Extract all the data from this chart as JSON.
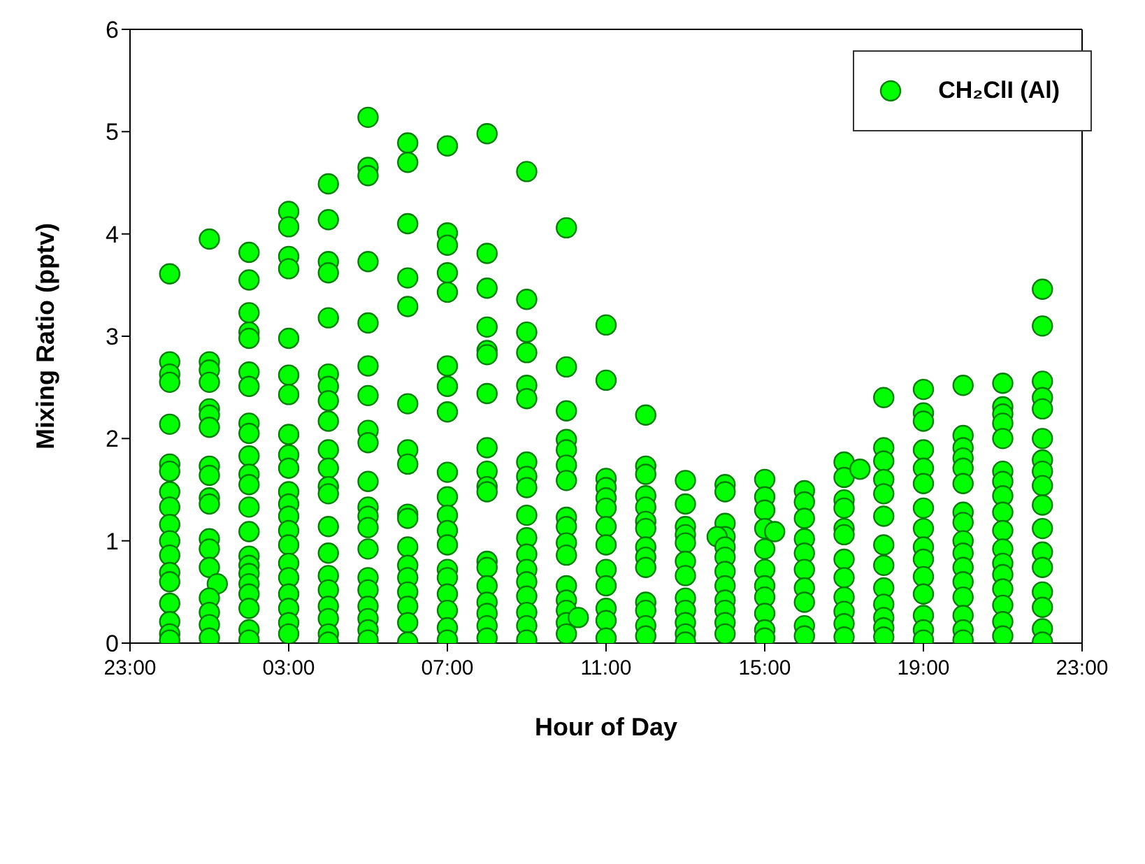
{
  "chart_data": {
    "type": "scatter",
    "xlabel": "Hour of Day",
    "ylabel": "Mixing Ratio (pptv)",
    "xlim": [
      "2000-01-01T23:00",
      "2000-01-02T23:00"
    ],
    "xticks": [
      {
        "value": "2000-01-01T23:00",
        "label": "23:00"
      },
      {
        "value": "2000-01-02T03:00",
        "label": "03:00"
      },
      {
        "value": "2000-01-02T07:00",
        "label": "07:00"
      },
      {
        "value": "2000-01-02T11:00",
        "label": "11:00"
      },
      {
        "value": "2000-01-02T15:00",
        "label": "15:00"
      },
      {
        "value": "2000-01-02T19:00",
        "label": "19:00"
      },
      {
        "value": "2000-01-02T23:00",
        "label": "23:00"
      }
    ],
    "ylim": [
      0,
      6
    ],
    "yticks": [
      0,
      1,
      2,
      3,
      4,
      5,
      6
    ],
    "grid": false,
    "legend": "top right",
    "marker": "circle",
    "series": [
      {
        "name": "CH₂ClI (Al)",
        "color": "#00ff00",
        "x": [
          "2000-01-02T00:00",
          "2000-01-02T00:00",
          "2000-01-02T00:00",
          "2000-01-02T00:00",
          "2000-01-02T00:00",
          "2000-01-02T00:00",
          "2000-01-02T00:00",
          "2000-01-02T00:00",
          "2000-01-02T00:00",
          "2000-01-02T00:00",
          "2000-01-02T00:00",
          "2000-01-02T00:00",
          "2000-01-02T00:00",
          "2000-01-02T00:00",
          "2000-01-02T00:00",
          "2000-01-02T00:00",
          "2000-01-02T00:00",
          "2000-01-02T00:00",
          "2000-01-02T01:00",
          "2000-01-02T01:00",
          "2000-01-02T01:00",
          "2000-01-02T01:00",
          "2000-01-02T01:00",
          "2000-01-02T01:00",
          "2000-01-02T01:00",
          "2000-01-02T01:00",
          "2000-01-02T01:00",
          "2000-01-02T01:00",
          "2000-01-02T01:00",
          "2000-01-02T01:00",
          "2000-01-02T01:00",
          "2000-01-02T01:00",
          "2000-01-02T01:12",
          "2000-01-02T01:00",
          "2000-01-02T01:00",
          "2000-01-02T01:00",
          "2000-01-02T01:00",
          "2000-01-02T02:00",
          "2000-01-02T02:00",
          "2000-01-02T02:00",
          "2000-01-02T02:00",
          "2000-01-02T02:00",
          "2000-01-02T02:00",
          "2000-01-02T02:00",
          "2000-01-02T02:00",
          "2000-01-02T02:00",
          "2000-01-02T02:00",
          "2000-01-02T02:00",
          "2000-01-02T02:00",
          "2000-01-02T02:00",
          "2000-01-02T02:00",
          "2000-01-02T02:00",
          "2000-01-02T02:00",
          "2000-01-02T02:00",
          "2000-01-02T02:00",
          "2000-01-02T02:00",
          "2000-01-02T02:00",
          "2000-01-02T02:00",
          "2000-01-02T02:00",
          "2000-01-02T03:00",
          "2000-01-02T03:00",
          "2000-01-02T03:00",
          "2000-01-02T03:00",
          "2000-01-02T03:00",
          "2000-01-02T03:00",
          "2000-01-02T03:00",
          "2000-01-02T03:00",
          "2000-01-02T03:00",
          "2000-01-02T03:00",
          "2000-01-02T03:00",
          "2000-01-02T03:00",
          "2000-01-02T03:00",
          "2000-01-02T03:00",
          "2000-01-02T03:00",
          "2000-01-02T03:00",
          "2000-01-02T03:00",
          "2000-01-02T03:00",
          "2000-01-02T03:00",
          "2000-01-02T03:00",
          "2000-01-02T03:00",
          "2000-01-02T04:00",
          "2000-01-02T04:00",
          "2000-01-02T04:00",
          "2000-01-02T04:00",
          "2000-01-02T04:00",
          "2000-01-02T04:00",
          "2000-01-02T04:00",
          "2000-01-02T04:00",
          "2000-01-02T04:00",
          "2000-01-02T04:00",
          "2000-01-02T04:00",
          "2000-01-02T04:00",
          "2000-01-02T04:00",
          "2000-01-02T04:00",
          "2000-01-02T04:00",
          "2000-01-02T04:00",
          "2000-01-02T04:00",
          "2000-01-02T04:00",
          "2000-01-02T04:00",
          "2000-01-02T04:00",
          "2000-01-02T04:00",
          "2000-01-02T05:00",
          "2000-01-02T05:00",
          "2000-01-02T05:00",
          "2000-01-02T05:00",
          "2000-01-02T05:00",
          "2000-01-02T05:00",
          "2000-01-02T05:00",
          "2000-01-02T05:00",
          "2000-01-02T05:00",
          "2000-01-02T05:00",
          "2000-01-02T05:00",
          "2000-01-02T05:00",
          "2000-01-02T05:00",
          "2000-01-02T05:00",
          "2000-01-02T05:00",
          "2000-01-02T05:00",
          "2000-01-02T05:00",
          "2000-01-02T05:00",
          "2000-01-02T05:00",
          "2000-01-02T05:00",
          "2000-01-02T06:00",
          "2000-01-02T06:00",
          "2000-01-02T06:00",
          "2000-01-02T06:00",
          "2000-01-02T06:00",
          "2000-01-02T06:00",
          "2000-01-02T06:00",
          "2000-01-02T06:00",
          "2000-01-02T06:00",
          "2000-01-02T06:00",
          "2000-01-02T06:00",
          "2000-01-02T06:00",
          "2000-01-02T06:00",
          "2000-01-02T06:00",
          "2000-01-02T06:00",
          "2000-01-02T06:00",
          "2000-01-02T06:00",
          "2000-01-02T07:00",
          "2000-01-02T07:00",
          "2000-01-02T07:00",
          "2000-01-02T07:00",
          "2000-01-02T07:00",
          "2000-01-02T07:00",
          "2000-01-02T07:00",
          "2000-01-02T07:00",
          "2000-01-02T07:00",
          "2000-01-02T07:00",
          "2000-01-02T07:00",
          "2000-01-02T07:00",
          "2000-01-02T07:00",
          "2000-01-02T07:00",
          "2000-01-02T07:00",
          "2000-01-02T07:00",
          "2000-01-02T07:00",
          "2000-01-02T07:00",
          "2000-01-02T07:00",
          "2000-01-02T08:00",
          "2000-01-02T08:00",
          "2000-01-02T08:00",
          "2000-01-02T08:00",
          "2000-01-02T08:00",
          "2000-01-02T08:00",
          "2000-01-02T08:00",
          "2000-01-02T08:00",
          "2000-01-02T08:00",
          "2000-01-02T08:00",
          "2000-01-02T08:00",
          "2000-01-02T08:00",
          "2000-01-02T08:00",
          "2000-01-02T08:00",
          "2000-01-02T08:00",
          "2000-01-02T08:00",
          "2000-01-02T08:00",
          "2000-01-02T08:00",
          "2000-01-02T09:00",
          "2000-01-02T09:00",
          "2000-01-02T09:00",
          "2000-01-02T09:00",
          "2000-01-02T09:00",
          "2000-01-02T09:00",
          "2000-01-02T09:00",
          "2000-01-02T09:00",
          "2000-01-02T09:00",
          "2000-01-02T09:00",
          "2000-01-02T09:00",
          "2000-01-02T09:00",
          "2000-01-02T09:00",
          "2000-01-02T09:00",
          "2000-01-02T09:00",
          "2000-01-02T09:00",
          "2000-01-02T09:00",
          "2000-01-02T09:00",
          "2000-01-02T10:00",
          "2000-01-02T10:00",
          "2000-01-02T10:00",
          "2000-01-02T10:00",
          "2000-01-02T10:00",
          "2000-01-02T10:00",
          "2000-01-02T10:00",
          "2000-01-02T10:00",
          "2000-01-02T10:00",
          "2000-01-02T10:00",
          "2000-01-02T10:00",
          "2000-01-02T10:00",
          "2000-01-02T10:00",
          "2000-01-02T10:00",
          "2000-01-02T10:00",
          "2000-01-02T10:00",
          "2000-01-02T10:18",
          "2000-01-02T11:00",
          "2000-01-02T11:00",
          "2000-01-02T11:00",
          "2000-01-02T11:00",
          "2000-01-02T11:00",
          "2000-01-02T11:00",
          "2000-01-02T11:00",
          "2000-01-02T11:00",
          "2000-01-02T11:00",
          "2000-01-02T11:00",
          "2000-01-02T11:00",
          "2000-01-02T11:00",
          "2000-01-02T11:00",
          "2000-01-02T12:00",
          "2000-01-02T12:00",
          "2000-01-02T12:00",
          "2000-01-02T12:00",
          "2000-01-02T12:00",
          "2000-01-02T12:00",
          "2000-01-02T12:00",
          "2000-01-02T12:00",
          "2000-01-02T12:00",
          "2000-01-02T12:00",
          "2000-01-02T12:00",
          "2000-01-02T12:00",
          "2000-01-02T12:00",
          "2000-01-02T12:00",
          "2000-01-02T13:00",
          "2000-01-02T13:00",
          "2000-01-02T13:00",
          "2000-01-02T13:00",
          "2000-01-02T13:00",
          "2000-01-02T13:00",
          "2000-01-02T13:00",
          "2000-01-02T13:00",
          "2000-01-02T13:00",
          "2000-01-02T13:00",
          "2000-01-02T13:00",
          "2000-01-02T13:00",
          "2000-01-02T14:00",
          "2000-01-02T14:00",
          "2000-01-02T14:00",
          "2000-01-02T14:00",
          "2000-01-02T13:48",
          "2000-01-02T14:00",
          "2000-01-02T14:00",
          "2000-01-02T14:00",
          "2000-01-02T14:00",
          "2000-01-02T14:00",
          "2000-01-02T14:00",
          "2000-01-02T14:00",
          "2000-01-02T14:00",
          "2000-01-02T15:00",
          "2000-01-02T15:00",
          "2000-01-02T15:00",
          "2000-01-02T15:00",
          "2000-01-02T15:00",
          "2000-01-02T15:00",
          "2000-01-02T15:00",
          "2000-01-02T15:00",
          "2000-01-02T15:00",
          "2000-01-02T15:00",
          "2000-01-02T15:00",
          "2000-01-02T15:15",
          "2000-01-02T16:00",
          "2000-01-02T16:00",
          "2000-01-02T16:00",
          "2000-01-02T16:00",
          "2000-01-02T16:00",
          "2000-01-02T16:00",
          "2000-01-02T16:00",
          "2000-01-02T16:00",
          "2000-01-02T16:00",
          "2000-01-02T16:00",
          "2000-01-02T17:00",
          "2000-01-02T17:00",
          "2000-01-02T17:00",
          "2000-01-02T17:00",
          "2000-01-02T17:00",
          "2000-01-02T17:00",
          "2000-01-02T17:00",
          "2000-01-02T17:00",
          "2000-01-02T17:00",
          "2000-01-02T17:00",
          "2000-01-02T17:00",
          "2000-01-02T17:00",
          "2000-01-02T17:24",
          "2000-01-02T18:00",
          "2000-01-02T18:00",
          "2000-01-02T18:00",
          "2000-01-02T18:00",
          "2000-01-02T18:00",
          "2000-01-02T18:00",
          "2000-01-02T18:00",
          "2000-01-02T18:00",
          "2000-01-02T18:00",
          "2000-01-02T18:00",
          "2000-01-02T18:00",
          "2000-01-02T18:00",
          "2000-01-02T18:00",
          "2000-01-02T19:00",
          "2000-01-02T19:00",
          "2000-01-02T19:00",
          "2000-01-02T19:00",
          "2000-01-02T19:00",
          "2000-01-02T19:00",
          "2000-01-02T19:00",
          "2000-01-02T19:00",
          "2000-01-02T19:00",
          "2000-01-02T19:00",
          "2000-01-02T19:00",
          "2000-01-02T19:00",
          "2000-01-02T19:00",
          "2000-01-02T19:00",
          "2000-01-02T19:00",
          "2000-01-02T20:00",
          "2000-01-02T20:00",
          "2000-01-02T20:00",
          "2000-01-02T20:00",
          "2000-01-02T20:00",
          "2000-01-02T20:00",
          "2000-01-02T20:00",
          "2000-01-02T20:00",
          "2000-01-02T20:00",
          "2000-01-02T20:00",
          "2000-01-02T20:00",
          "2000-01-02T20:00",
          "2000-01-02T20:00",
          "2000-01-02T20:00",
          "2000-01-02T20:00",
          "2000-01-02T20:00",
          "2000-01-02T21:00",
          "2000-01-02T21:00",
          "2000-01-02T21:00",
          "2000-01-02T21:00",
          "2000-01-02T21:00",
          "2000-01-02T21:00",
          "2000-01-02T21:00",
          "2000-01-02T21:00",
          "2000-01-02T21:00",
          "2000-01-02T21:00",
          "2000-01-02T21:00",
          "2000-01-02T21:00",
          "2000-01-02T21:00",
          "2000-01-02T21:00",
          "2000-01-02T21:00",
          "2000-01-02T21:00",
          "2000-01-02T21:00",
          "2000-01-02T22:00",
          "2000-01-02T22:00",
          "2000-01-02T22:00",
          "2000-01-02T22:00",
          "2000-01-02T22:00",
          "2000-01-02T22:00",
          "2000-01-02T22:00",
          "2000-01-02T22:00",
          "2000-01-02T22:00",
          "2000-01-02T22:00",
          "2000-01-02T22:00",
          "2000-01-02T22:00",
          "2000-01-02T22:00",
          "2000-01-02T22:00",
          "2000-01-02T22:00",
          "2000-01-02T22:00",
          "2000-01-02T22:00"
        ],
        "values": [
          3.61,
          2.75,
          2.63,
          2.55,
          2.14,
          1.75,
          1.68,
          1.48,
          1.33,
          1.16,
          1.0,
          0.86,
          0.69,
          0.6,
          0.39,
          0.21,
          0.09,
          0.03,
          3.95,
          2.75,
          2.67,
          2.55,
          2.29,
          2.23,
          2.11,
          1.73,
          1.64,
          1.42,
          1.36,
          1.02,
          0.92,
          0.74,
          0.58,
          0.44,
          0.3,
          0.18,
          0.05,
          3.82,
          3.55,
          3.23,
          3.04,
          2.98,
          2.65,
          2.51,
          2.15,
          2.05,
          1.83,
          1.65,
          1.55,
          1.33,
          1.09,
          0.85,
          0.76,
          0.68,
          0.58,
          0.48,
          0.34,
          0.13,
          0.03,
          4.22,
          4.07,
          3.78,
          3.66,
          2.98,
          2.62,
          2.43,
          2.04,
          1.84,
          1.71,
          1.48,
          1.36,
          1.24,
          1.1,
          0.96,
          0.78,
          0.64,
          0.48,
          0.34,
          0.2,
          0.09,
          4.49,
          4.14,
          3.73,
          3.62,
          3.18,
          2.63,
          2.51,
          2.37,
          2.17,
          1.89,
          1.71,
          1.53,
          1.46,
          1.14,
          0.88,
          0.66,
          0.52,
          0.36,
          0.24,
          0.09,
          0.01,
          5.14,
          4.65,
          4.57,
          3.73,
          3.13,
          2.71,
          2.42,
          2.08,
          1.96,
          1.58,
          1.33,
          1.24,
          1.13,
          0.92,
          0.64,
          0.52,
          0.36,
          0.24,
          0.13,
          0.03,
          4.89,
          4.7,
          4.1,
          3.57,
          3.29,
          2.34,
          1.89,
          1.75,
          1.26,
          1.22,
          0.94,
          0.76,
          0.64,
          0.5,
          0.36,
          0.2,
          0.01,
          4.86,
          4.01,
          3.89,
          3.62,
          3.43,
          2.71,
          2.51,
          2.26,
          1.67,
          1.43,
          1.25,
          1.1,
          0.96,
          0.72,
          0.64,
          0.48,
          0.32,
          0.15,
          0.03,
          4.98,
          3.81,
          3.47,
          3.09,
          2.86,
          2.82,
          2.44,
          1.91,
          1.68,
          1.53,
          1.48,
          0.8,
          0.74,
          0.56,
          0.4,
          0.29,
          0.17,
          0.05,
          4.61,
          3.36,
          3.04,
          2.84,
          2.52,
          2.39,
          1.77,
          1.63,
          1.52,
          1.25,
          1.03,
          0.87,
          0.72,
          0.6,
          0.46,
          0.3,
          0.17,
          0.03,
          4.06,
          2.7,
          2.27,
          1.99,
          1.89,
          1.74,
          1.59,
          1.23,
          1.14,
          0.98,
          0.86,
          0.56,
          0.42,
          0.32,
          0.2,
          0.09,
          0.25,
          3.11,
          2.57,
          1.61,
          1.52,
          1.42,
          1.32,
          1.14,
          0.96,
          0.72,
          0.56,
          0.34,
          0.22,
          0.05,
          2.23,
          1.73,
          1.65,
          1.44,
          1.33,
          1.19,
          1.12,
          0.94,
          0.84,
          0.74,
          0.4,
          0.32,
          0.17,
          0.07,
          1.59,
          1.36,
          1.14,
          1.06,
          0.98,
          0.8,
          0.66,
          0.44,
          0.32,
          0.2,
          0.09,
          0.01,
          1.55,
          1.48,
          1.17,
          1.04,
          1.04,
          0.94,
          0.84,
          0.7,
          0.56,
          0.42,
          0.32,
          0.2,
          0.09,
          1.6,
          1.43,
          1.3,
          1.12,
          0.92,
          0.72,
          0.56,
          0.45,
          0.29,
          0.13,
          0.05,
          1.09,
          1.49,
          1.38,
          1.22,
          1.02,
          0.88,
          0.72,
          0.54,
          0.4,
          0.17,
          0.07,
          1.77,
          1.62,
          1.4,
          1.32,
          1.12,
          1.06,
          0.82,
          0.64,
          0.45,
          0.31,
          0.19,
          0.06,
          1.7,
          2.4,
          1.91,
          1.78,
          1.6,
          1.46,
          1.24,
          0.96,
          0.76,
          0.54,
          0.38,
          0.25,
          0.15,
          0.06,
          2.48,
          2.25,
          2.17,
          1.89,
          1.71,
          1.56,
          1.32,
          1.12,
          0.94,
          0.82,
          0.65,
          0.48,
          0.27,
          0.13,
          0.03,
          2.52,
          2.03,
          1.91,
          1.81,
          1.71,
          1.56,
          1.28,
          1.18,
          1.0,
          0.88,
          0.74,
          0.6,
          0.45,
          0.27,
          0.13,
          0.03,
          2.54,
          2.31,
          2.24,
          2.15,
          2.0,
          1.68,
          1.58,
          1.44,
          1.28,
          1.1,
          0.92,
          0.78,
          0.67,
          0.53,
          0.37,
          0.21,
          0.07,
          3.46,
          3.1,
          2.56,
          2.4,
          2.29,
          2.0,
          1.79,
          1.68,
          1.54,
          1.35,
          1.12,
          0.89,
          0.74,
          0.5,
          0.35,
          0.14,
          0.01
        ]
      }
    ]
  }
}
